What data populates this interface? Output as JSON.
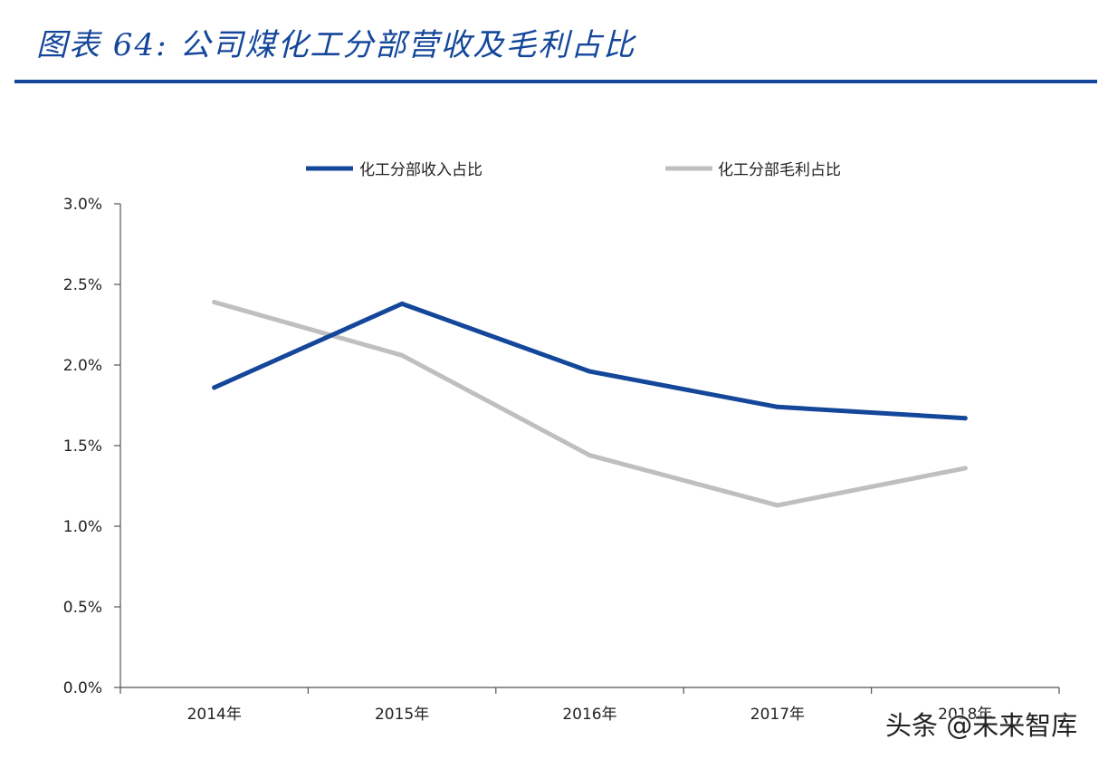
{
  "header": {
    "title": "图表 64:  公司煤化工分部营收及毛利占比"
  },
  "colors": {
    "title": "#14479a",
    "series_revenue": "#14479a",
    "series_margin": "#bfbfbf",
    "axis": "#555555"
  },
  "watermark": "头条 @未来智库",
  "chart_data": {
    "type": "line",
    "categories": [
      "2014年",
      "2015年",
      "2016年",
      "2017年",
      "2018年"
    ],
    "series": [
      {
        "name": "化工分部收入占比",
        "color": "#14479a",
        "values": [
          0.0186,
          0.0238,
          0.0196,
          0.0174,
          0.0167
        ]
      },
      {
        "name": "化工分部毛利占比",
        "color": "#bfbfbf",
        "values": [
          0.0239,
          0.0206,
          0.0144,
          0.0113,
          0.0136
        ]
      }
    ],
    "ylim": [
      0,
      0.03
    ],
    "yticks": [
      "0.0%",
      "0.5%",
      "1.0%",
      "1.5%",
      "2.0%",
      "2.5%",
      "3.0%"
    ],
    "xlabel": "",
    "ylabel": "",
    "legend_position": "top",
    "grid": false
  }
}
